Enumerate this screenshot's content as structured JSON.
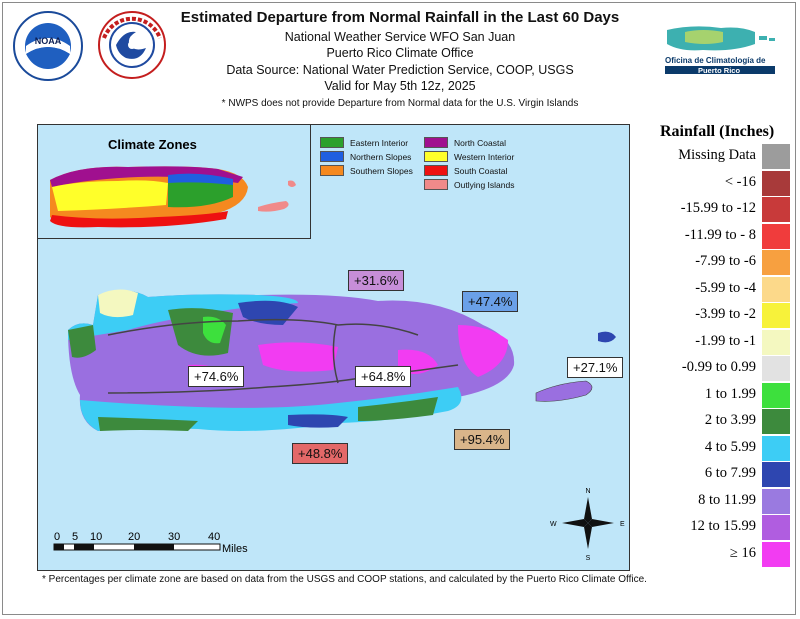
{
  "title": "Estimated Departure from Normal Rainfall in the Last 60 Days",
  "subtitle_lines": [
    "National Weather Service WFO San Juan",
    "Puerto Rico Climate Office",
    "Data Source: National Water Prediction Service, COOP, USGS",
    "Valid for May 5th 12z, 2025"
  ],
  "note": "* NWPS does not provide Departure from Normal data for the U.S. Virgin Islands",
  "footnote": "* Percentages per climate zone are based on data from the USGS and COOP stations, and calculated by the Puerto Rico Climate Office.",
  "logos": {
    "noaa": {
      "text": "NOAA",
      "ring_text": "NATIONAL OCEANIC AND ATMOSPHERIC ADMINISTRATION · U.S. DEPARTMENT OF COMMERCE"
    },
    "nws": {
      "ring_text": "NATIONAL WEATHER SERVICE"
    },
    "climate_office": {
      "line1": "Oficina de Climatología de",
      "line2": "Puerto Rico"
    }
  },
  "inset": {
    "title": "Climate Zones",
    "zones": [
      {
        "name": "Eastern Interior",
        "color": "#2ca02c"
      },
      {
        "name": "Northern Slopes",
        "color": "#1f5fe0"
      },
      {
        "name": "Southern Slopes",
        "color": "#f5891f"
      },
      {
        "name": "North Coastal",
        "color": "#a0108f"
      },
      {
        "name": "Western Interior",
        "color": "#ffff2a"
      },
      {
        "name": "South Coastal",
        "color": "#ee1111"
      },
      {
        "name": "Outlying Islands",
        "color": "#f08a8a"
      }
    ]
  },
  "zone_labels": [
    {
      "text": "+31.6%",
      "bg": "#c78ed8"
    },
    {
      "text": "+47.4%",
      "bg": "#6aa0e8"
    },
    {
      "text": "+27.1%",
      "bg": "#ffffff"
    },
    {
      "text": "+74.6%",
      "bg": "#ffffff"
    },
    {
      "text": "+64.8%",
      "bg": "#ffffff"
    },
    {
      "text": "+95.4%",
      "bg": "#d9b58a"
    },
    {
      "text": "+48.8%",
      "bg": "#e36868"
    }
  ],
  "compass": {
    "n": "N",
    "s": "S",
    "e": "E",
    "w": "W"
  },
  "scale_bar": {
    "ticks": [
      "0",
      "5",
      "10",
      "20",
      "30",
      "40"
    ],
    "unit": "Miles"
  },
  "legend": {
    "title": "Rainfall (Inches)",
    "items": [
      {
        "label": "Missing Data",
        "color": "#9c9c9c"
      },
      {
        "label": "< -16",
        "color": "#a83a3a"
      },
      {
        "label": "-15.99 to -12",
        "color": "#c83a3a"
      },
      {
        "label": "-11.99 to - 8",
        "color": "#f03c3c"
      },
      {
        "label": "-7.99 to  -6",
        "color": "#f7a040"
      },
      {
        "label": "-5.99 to -4",
        "color": "#fcd98a"
      },
      {
        "label": "-3.99 to -2",
        "color": "#f7f23a"
      },
      {
        "label": "-1.99 to  -1",
        "color": "#f4f8c0"
      },
      {
        "label": "-0.99 to 0.99",
        "color": "#e2e2e2"
      },
      {
        "label": "1 to 1.99",
        "color": "#3de03d"
      },
      {
        "label": "2 to 3.99",
        "color": "#3d8a3d"
      },
      {
        "label": "4 to 5.99",
        "color": "#3dcdf5"
      },
      {
        "label": "6 to 7.99",
        "color": "#2e46b0"
      },
      {
        "label": "8 to 11.99",
        "color": "#9a7ae0"
      },
      {
        "label": "12 to 15.99",
        "color": "#b05de0"
      },
      {
        "label": "≥  16",
        "color": "#f23cf2"
      }
    ]
  }
}
